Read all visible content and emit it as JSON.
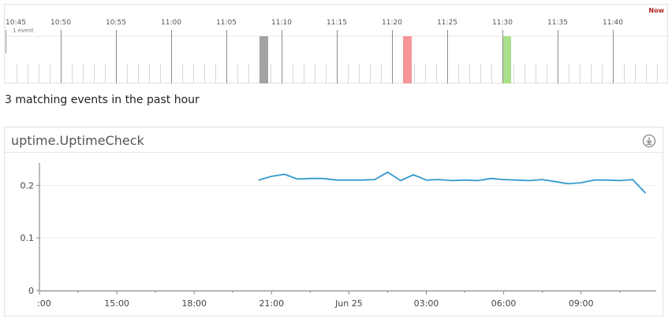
{
  "timeline": {
    "now_label": "Now",
    "tick_labels": [
      "10:45",
      "10:50",
      "10:55",
      "11:00",
      "11:05",
      "11:10",
      "11:15",
      "11:20",
      "11:25",
      "11:30",
      "11:35",
      "11:40"
    ],
    "legend": "1 event",
    "events": [
      {
        "time": "11:08",
        "color": "#a3a3a3"
      },
      {
        "time": "11:21",
        "color": "#f59595"
      },
      {
        "time": "11:30",
        "color": "#a8e08a"
      }
    ]
  },
  "summary": "3 matching events in the past hour",
  "panel": {
    "title": "uptime.UptimeCheck",
    "download_icon": "download-icon"
  },
  "chart_data": {
    "type": "line",
    "title": "uptime.UptimeCheck",
    "xlabel": "",
    "ylabel": "",
    "x_tick_labels": [
      ":00",
      "15:00",
      "18:00",
      "21:00",
      "Jun 25",
      "03:00",
      "06:00",
      "09:00"
    ],
    "y_tick_labels": [
      "0",
      "0.1",
      "0.2"
    ],
    "ylim": [
      0,
      0.25
    ],
    "line_color": "#3399cc",
    "grid": "horizontal",
    "series": [
      {
        "name": "",
        "x_hours": [
          20.5,
          21.0,
          21.5,
          22.0,
          22.5,
          23.0,
          23.5,
          24.0,
          24.5,
          25.0,
          25.5,
          26.0,
          26.5,
          27.0,
          27.5,
          28.0,
          28.5,
          29.0,
          29.5,
          30.0,
          30.5,
          31.0,
          31.5,
          32.0,
          32.5,
          33.0,
          33.5,
          34.0,
          34.5,
          35.0,
          35.5
        ],
        "values": [
          0.21,
          0.217,
          0.221,
          0.212,
          0.213,
          0.213,
          0.21,
          0.21,
          0.21,
          0.211,
          0.225,
          0.209,
          0.22,
          0.21,
          0.211,
          0.209,
          0.21,
          0.209,
          0.213,
          0.211,
          0.21,
          0.209,
          0.211,
          0.207,
          0.203,
          0.205,
          0.21,
          0.21,
          0.209,
          0.211,
          0.185
        ]
      }
    ]
  }
}
